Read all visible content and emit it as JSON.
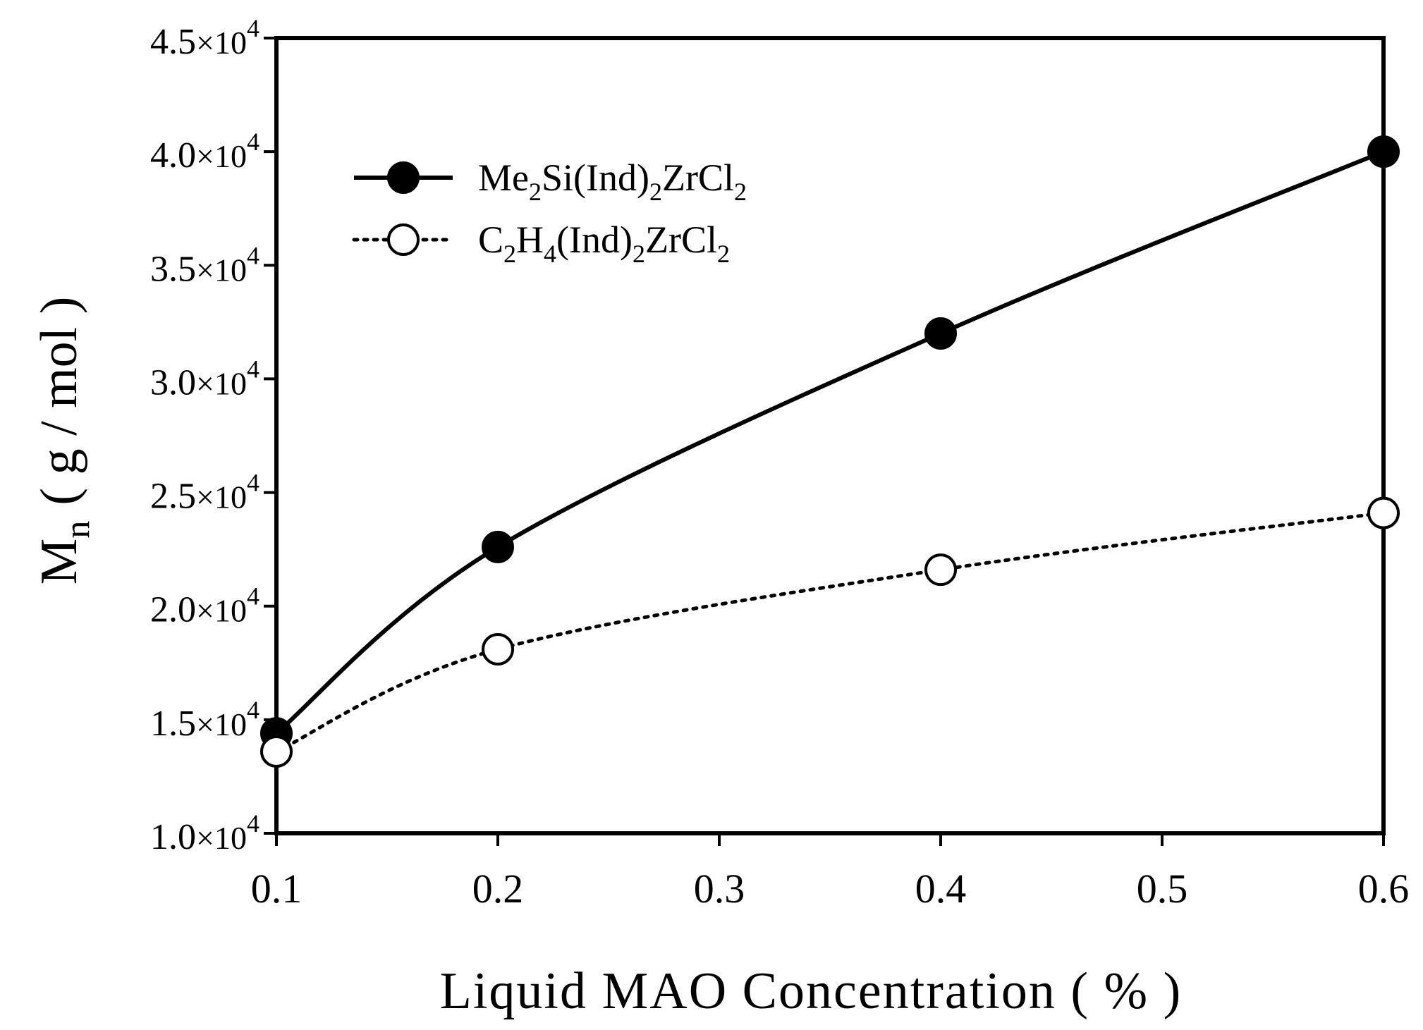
{
  "chart_data": {
    "type": "line",
    "title": "",
    "xlabel": "Liquid MAO Concentration ( % )",
    "ylabel": "Mn ( g / mol )",
    "ylabel_main": "M",
    "ylabel_sub": "n",
    "ylabel_units": "( g / mol )",
    "xlim": [
      0.1,
      0.6
    ],
    "ylim": [
      10000,
      45000
    ],
    "x_ticks": [
      0.1,
      0.2,
      0.3,
      0.4,
      0.5,
      0.6
    ],
    "x_tick_labels": [
      "0.1",
      "0.2",
      "0.3",
      "0.4",
      "0.5",
      "0.6"
    ],
    "y_ticks": [
      10000,
      15000,
      20000,
      25000,
      30000,
      35000,
      40000,
      45000
    ],
    "y_tick_labels": [
      {
        "mantissa": "1.0",
        "times": "×10",
        "exp": "4"
      },
      {
        "mantissa": "1.5",
        "times": "×10",
        "exp": "4"
      },
      {
        "mantissa": "2.0",
        "times": "×10",
        "exp": "4"
      },
      {
        "mantissa": "2.5",
        "times": "×10",
        "exp": "4"
      },
      {
        "mantissa": "3.0",
        "times": "×10",
        "exp": "4"
      },
      {
        "mantissa": "3.5",
        "times": "×10",
        "exp": "4"
      },
      {
        "mantissa": "4.0",
        "times": "×10",
        "exp": "4"
      },
      {
        "mantissa": "4.5",
        "times": "×10",
        "exp": "4"
      }
    ],
    "grid": false,
    "legend_position": "top-left",
    "series": [
      {
        "name": "Me2Si(Ind)2ZrCl2",
        "legend_parts": [
          [
            "Me",
            ""
          ],
          [
            "2",
            "sub"
          ],
          [
            "Si(Ind)",
            ""
          ],
          [
            "2",
            "sub"
          ],
          [
            "ZrCl",
            ""
          ],
          [
            "2",
            "sub"
          ]
        ],
        "marker": "filled-circle",
        "line": "solid",
        "color": "#000000",
        "x": [
          0.1,
          0.2,
          0.4,
          0.6
        ],
        "y": [
          14400,
          22600,
          32000,
          40000
        ]
      },
      {
        "name": "C2H4(Ind)2ZrCl2",
        "legend_parts": [
          [
            "C",
            ""
          ],
          [
            "2",
            "sub"
          ],
          [
            "H",
            ""
          ],
          [
            "4",
            "sub"
          ],
          [
            "(Ind)",
            ""
          ],
          [
            "2",
            "sub"
          ],
          [
            "ZrCl",
            ""
          ],
          [
            "2",
            "sub"
          ]
        ],
        "marker": "open-circle",
        "line": "dotted",
        "color": "#000000",
        "x": [
          0.1,
          0.2,
          0.4,
          0.6
        ],
        "y": [
          13600,
          18100,
          21600,
          24100
        ]
      }
    ]
  }
}
